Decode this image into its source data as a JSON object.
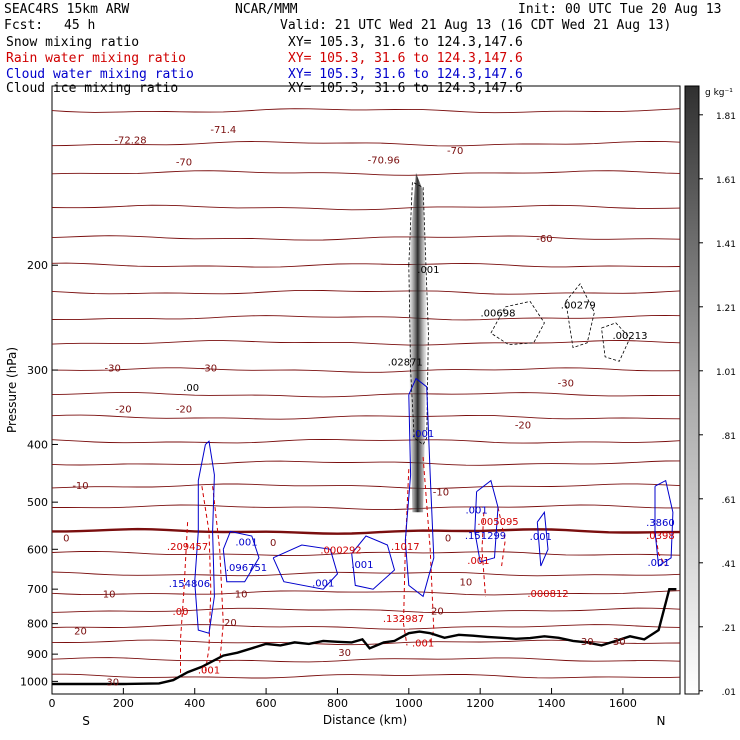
{
  "header": {
    "model": "SEAC4RS 15km ARW",
    "center": "NCAR/MMM",
    "init": "Init: 00 UTC Tue 20 Aug 13",
    "fcst_label": "Fcst:",
    "fcst_value": "45 h",
    "valid": "Valid: 21 UTC Wed 21 Aug 13 (16 CDT Wed 21 Aug 13)",
    "xy": "XY= 105.3, 31.6 to 124.3,147.6"
  },
  "fields": [
    {
      "name": "Snow mixing ratio",
      "color": "#000000"
    },
    {
      "name": "Rain water mixing ratio",
      "color": "#d00000"
    },
    {
      "name": "Cloud water mixing ratio",
      "color": "#0000cc"
    },
    {
      "name": "Cloud ice mixing ratio",
      "color": "#000000"
    }
  ],
  "chart_data": {
    "type": "cross-section contour",
    "xlabel": "Distance (km)",
    "ylabel": "Pressure (hPa)",
    "xlim": [
      0,
      1760
    ],
    "ylim": [
      1050,
      100
    ],
    "y_scale": "log",
    "x_ticks": [
      0,
      200,
      400,
      600,
      800,
      1000,
      1200,
      1400,
      1600
    ],
    "y_ticks": [
      200,
      300,
      400,
      500,
      600,
      700,
      800,
      900,
      1000
    ],
    "end_labels": {
      "left": "S",
      "right": "N"
    },
    "colorbar": {
      "unit": "g kg⁻¹",
      "ticks": [
        "1.81",
        "1.61",
        "1.41",
        "1.21",
        "1.01",
        ".81",
        ".61",
        ".41",
        ".21",
        ".01"
      ],
      "tick_values": [
        1.81,
        1.61,
        1.41,
        1.21,
        1.01,
        0.81,
        0.61,
        0.41,
        0.21,
        0.01
      ]
    },
    "terrain": {
      "distance_km": [
        0,
        100,
        200,
        300,
        340,
        380,
        420,
        450,
        480,
        520,
        560,
        600,
        640,
        680,
        720,
        760,
        800,
        840,
        870,
        890,
        910,
        930,
        960,
        1000,
        1030,
        1060,
        1100,
        1140,
        1180,
        1220,
        1260,
        1300,
        1340,
        1380,
        1420,
        1460,
        1500,
        1540,
        1580,
        1620,
        1660,
        1700,
        1730,
        1750
      ],
      "pressure_hPa": [
        1010,
        1010,
        1010,
        1008,
        995,
        965,
        945,
        925,
        905,
        895,
        880,
        865,
        870,
        860,
        865,
        855,
        858,
        860,
        850,
        880,
        870,
        860,
        855,
        830,
        825,
        830,
        845,
        835,
        838,
        842,
        845,
        848,
        846,
        840,
        845,
        855,
        860,
        870,
        855,
        840,
        850,
        820,
        700,
        700
      ]
    },
    "isotherm_labels": [
      {
        "text": "-72.28",
        "x": 220,
        "p": 123
      },
      {
        "text": "-71.4",
        "x": 480,
        "p": 118
      },
      {
        "text": "-70",
        "x": 370,
        "p": 134
      },
      {
        "text": "-70.96",
        "x": 930,
        "p": 133
      },
      {
        "text": "-70",
        "x": 1130,
        "p": 128
      },
      {
        "text": "-60",
        "x": 1380,
        "p": 180
      },
      {
        "text": "-30",
        "x": 170,
        "p": 297
      },
      {
        "text": "-30",
        "x": 440,
        "p": 297
      },
      {
        "text": "-30",
        "x": 1440,
        "p": 315
      },
      {
        "text": "-20",
        "x": 200,
        "p": 348
      },
      {
        "text": "-20",
        "x": 370,
        "p": 348
      },
      {
        "text": "-20",
        "x": 1320,
        "p": 370
      },
      {
        "text": "-10",
        "x": 80,
        "p": 468
      },
      {
        "text": "-10",
        "x": 1090,
        "p": 480
      },
      {
        "text": "0",
        "x": 40,
        "p": 573
      },
      {
        "text": "0",
        "x": 620,
        "p": 583
      },
      {
        "text": "0",
        "x": 1110,
        "p": 573
      },
      {
        "text": "10",
        "x": 160,
        "p": 712
      },
      {
        "text": "10",
        "x": 530,
        "p": 712
      },
      {
        "text": "10",
        "x": 1160,
        "p": 680
      },
      {
        "text": "20",
        "x": 80,
        "p": 822
      },
      {
        "text": "20",
        "x": 500,
        "p": 795
      },
      {
        "text": "20",
        "x": 1080,
        "p": 760
      },
      {
        "text": "30",
        "x": 820,
        "p": 892
      },
      {
        "text": "30",
        "x": 1500,
        "p": 855
      },
      {
        "text": "30",
        "x": 1590,
        "p": 855
      },
      {
        "text": "30",
        "x": 170,
        "p": 1000
      }
    ],
    "value_labels": [
      {
        "text": ".00",
        "x": 390,
        "p": 320,
        "color": "#000000"
      },
      {
        "text": ".001",
        "x": 1055,
        "p": 203,
        "color": "#000000"
      },
      {
        "text": ".02871",
        "x": 990,
        "p": 290,
        "color": "#000000"
      },
      {
        "text": ".00698",
        "x": 1250,
        "p": 240,
        "color": "#000000"
      },
      {
        "text": ".00279",
        "x": 1475,
        "p": 233,
        "color": "#000000"
      },
      {
        "text": ".00213",
        "x": 1620,
        "p": 262,
        "color": "#000000"
      },
      {
        "text": ".001",
        "x": 1040,
        "p": 383,
        "color": "#0000cc"
      },
      {
        "text": ".001",
        "x": 1190,
        "p": 514,
        "color": "#0000cc"
      },
      {
        "text": ".001",
        "x": 545,
        "p": 582,
        "color": "#0000cc"
      },
      {
        "text": ".001",
        "x": 1370,
        "p": 570,
        "color": "#0000cc"
      },
      {
        "text": ".154806",
        "x": 385,
        "p": 683,
        "color": "#0000cc"
      },
      {
        "text": ".096751",
        "x": 545,
        "p": 643,
        "color": "#0000cc"
      },
      {
        "text": ".001",
        "x": 760,
        "p": 682,
        "color": "#0000cc"
      },
      {
        "text": ".001",
        "x": 870,
        "p": 635,
        "color": "#0000cc"
      },
      {
        "text": ".151299",
        "x": 1215,
        "p": 568,
        "color": "#0000cc"
      },
      {
        "text": ".3860",
        "x": 1705,
        "p": 540,
        "color": "#0000cc"
      },
      {
        "text": ".001",
        "x": 1700,
        "p": 630,
        "color": "#0000cc"
      },
      {
        "text": ".209457",
        "x": 380,
        "p": 592,
        "color": "#d00000"
      },
      {
        "text": ".000292",
        "x": 810,
        "p": 600,
        "color": "#d00000"
      },
      {
        "text": ".1017",
        "x": 990,
        "p": 592,
        "color": "#d00000"
      },
      {
        "text": ".005095",
        "x": 1250,
        "p": 538,
        "color": "#d00000"
      },
      {
        "text": ".0398",
        "x": 1705,
        "p": 568,
        "color": "#d00000"
      },
      {
        "text": ".000812",
        "x": 1390,
        "p": 710,
        "color": "#d00000"
      },
      {
        "text": ".001",
        "x": 1195,
        "p": 625,
        "color": "#d00000"
      },
      {
        "text": ".132987",
        "x": 985,
        "p": 782,
        "color": "#d00000"
      },
      {
        "text": ".00",
        "x": 360,
        "p": 762,
        "color": "#d00000"
      },
      {
        "text": ".001",
        "x": 440,
        "p": 955,
        "color": "#d00000"
      },
      {
        "text": ".001",
        "x": 1040,
        "p": 860,
        "color": "#d00000"
      }
    ]
  }
}
